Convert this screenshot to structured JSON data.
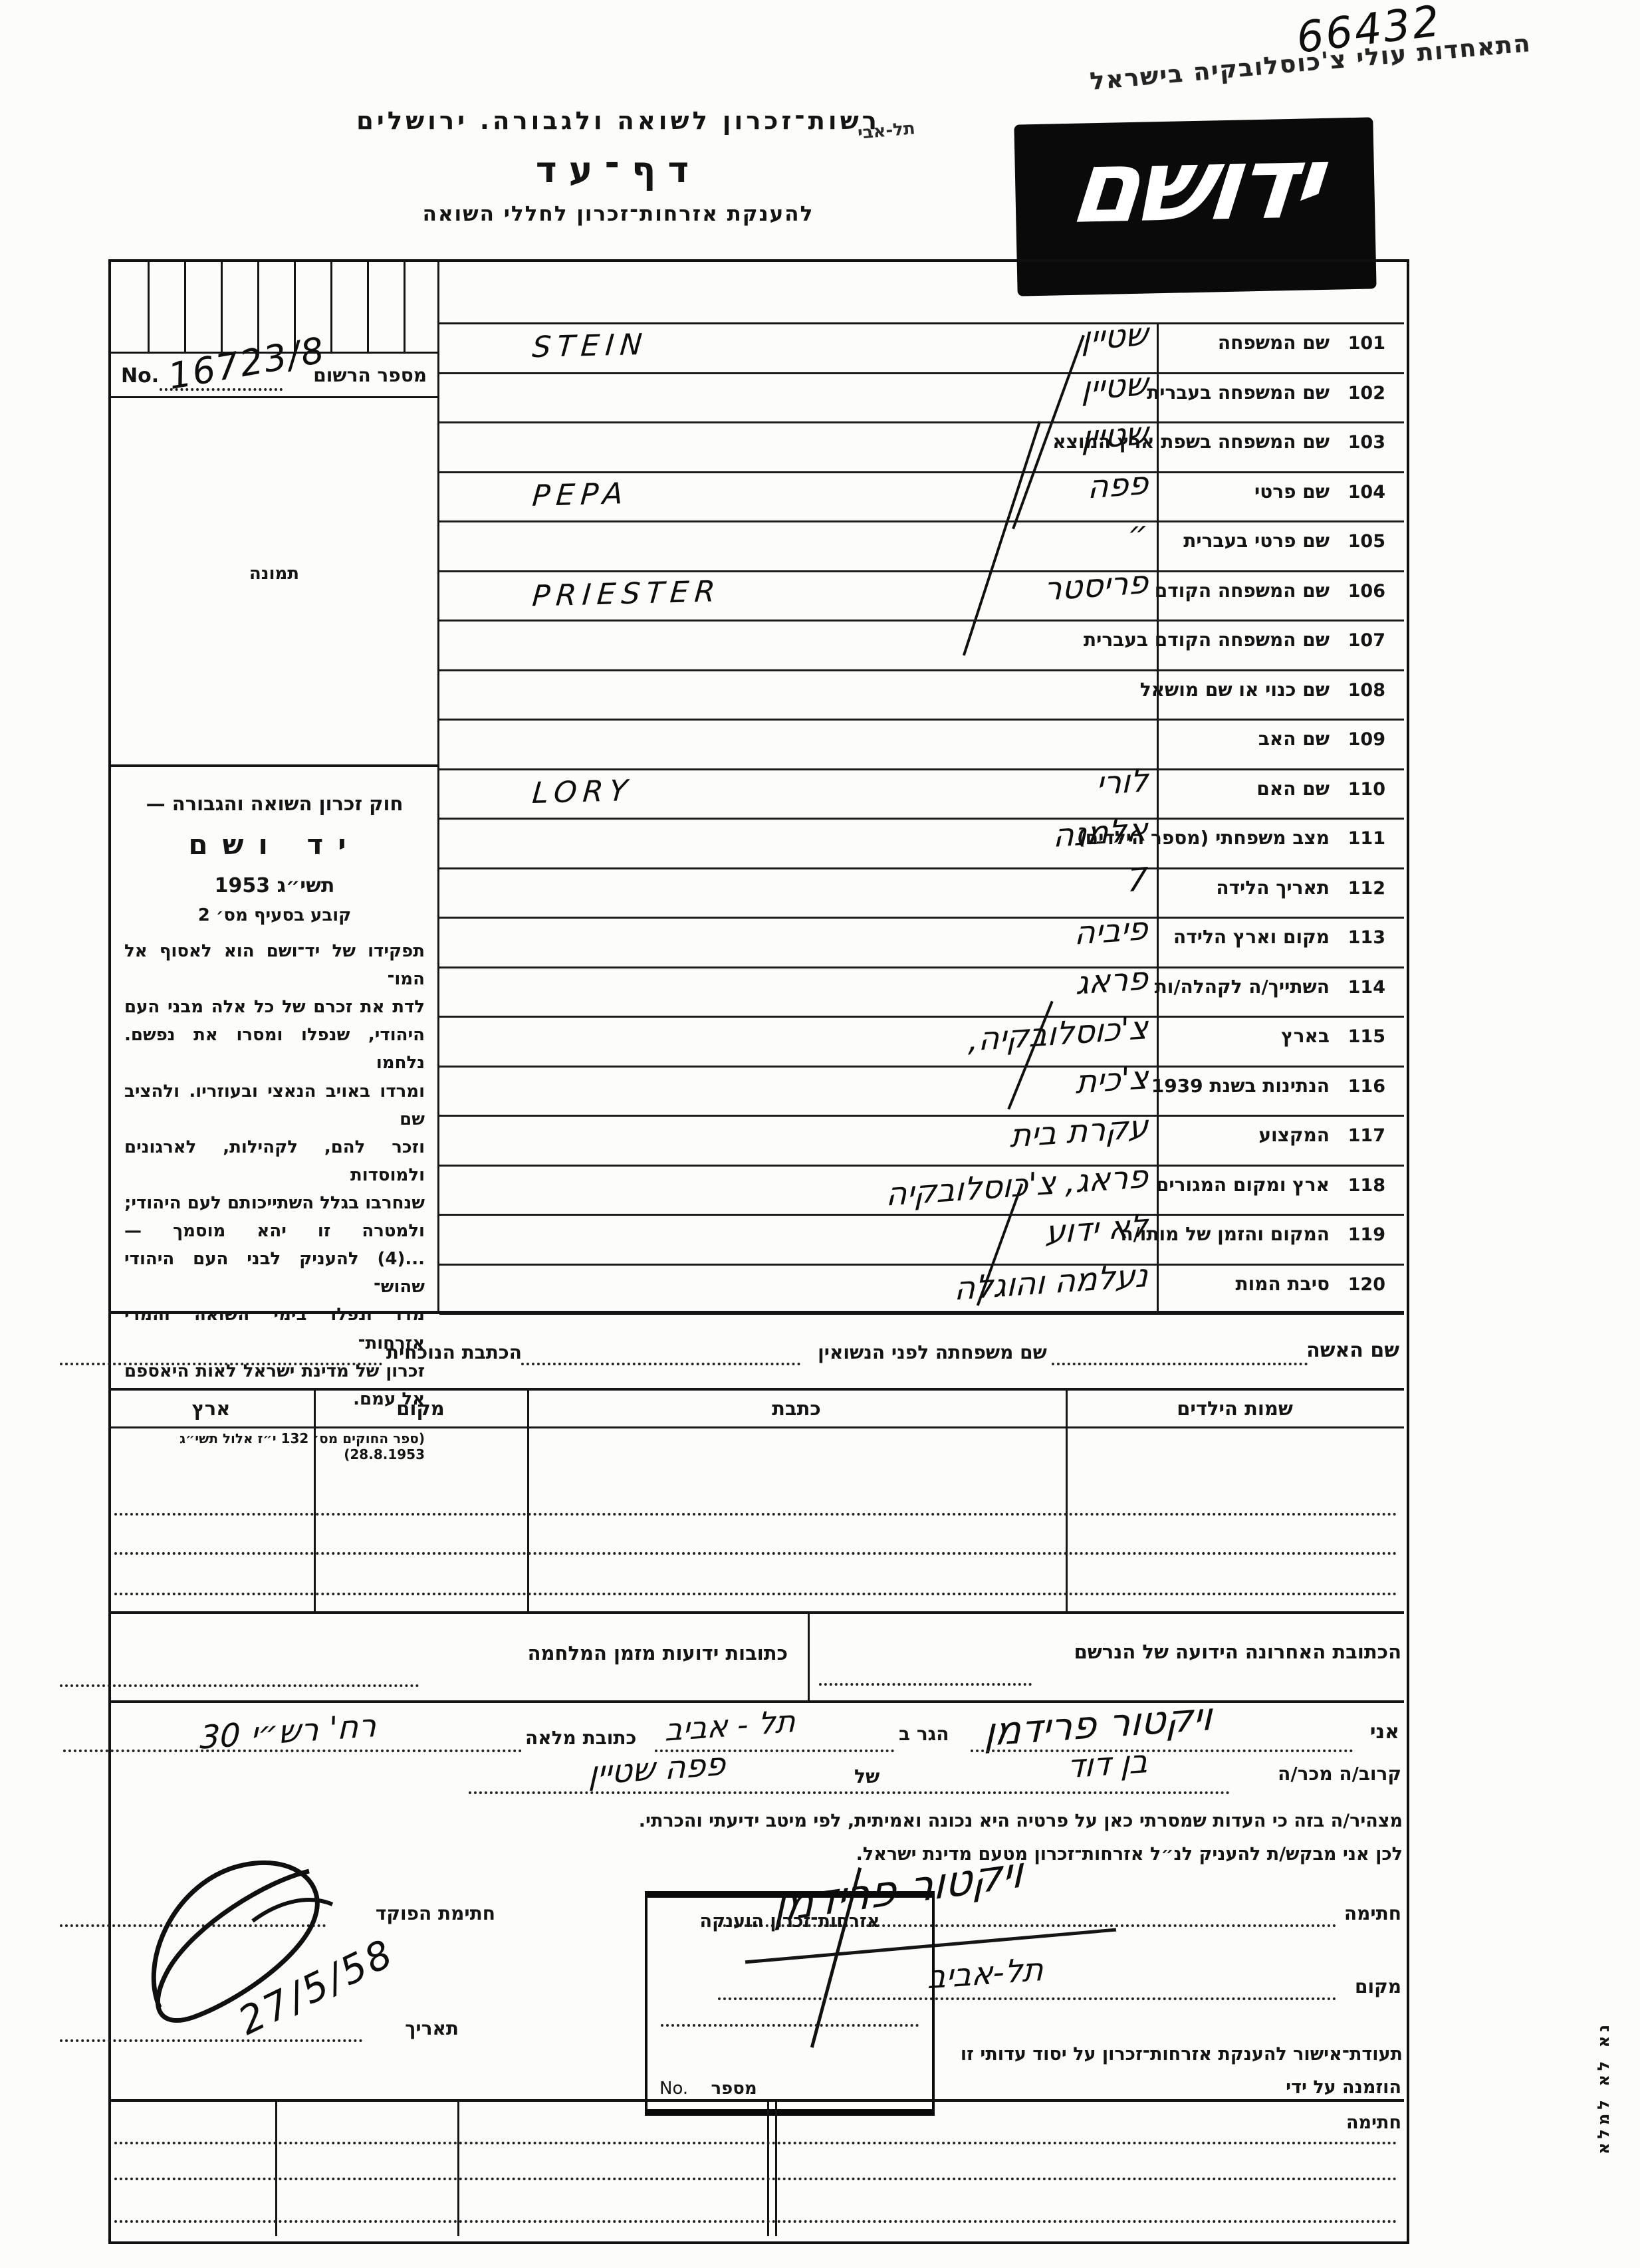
{
  "header": {
    "org_line": "רשות־זכרון לשואה ולגבורה. ירושלים",
    "form_title": "דף־עד",
    "subtitle": "להענקת אזרחות־זכרון לחללי השואה",
    "logo_text": "ידושם",
    "handwritten_number": "66432",
    "stamp_line1": "התאחדות עולי צ'כוסלובקיה בישראל",
    "stamp_line2": "תל-אבי"
  },
  "left_column": {
    "registry": {
      "label": "מספר הרשום",
      "no_prefix": "No.",
      "value": "16723/8",
      "photo_label": "תמונה"
    },
    "law": {
      "heading1": "חוק זכרון השואה והגבורה —",
      "heading2": "יד ושם",
      "heading3": "תשי״ג 1953",
      "heading4": "קובע בסעיף מס׳ 2",
      "body_lines": [
        "תפקידו של יד־ושם הוא לאסוף אל המו־",
        "לדת את זכרם של כל אלה מבני העם",
        "היהודי, שנפלו ומסרו את נפשם. נלחמו",
        "ומרדו באויב הנאצי ובעוזריו. ולהציב שם",
        "וזכר להם, לקהילות, לארגונים ולמוסדות",
        "שנחרבו בגלל השתייכותם לעם היהודי;",
        "ולמטרה זו יהא מוסמך —",
        "...(4) להעניק לבני העם היהודי שהוש־",
        "מדו ונפלו בימי השואה והמרי אזרחות־",
        "זכרון של מדינת ישראל לאות היאספם",
        "אל עמם."
      ],
      "citation": "(ספר החוקים מס׳ 132 י״ז אלול תשי״ג 28.8.1953)"
    }
  },
  "fields": [
    {
      "num": "101",
      "label": "שם המשפחה",
      "latin": "STEIN",
      "handwritten": "שטיין"
    },
    {
      "num": "102",
      "label": "שם המשפחה בעברית",
      "latin": "",
      "handwritten": "שטיין"
    },
    {
      "num": "103",
      "label": "שם המשפחה בשפת ארץ המוצא",
      "latin": "",
      "handwritten": "שטיין"
    },
    {
      "num": "104",
      "label": "שם פרטי",
      "latin": "PEPA",
      "handwritten": "פפה"
    },
    {
      "num": "105",
      "label": "שם פרטי בעברית",
      "latin": "",
      "handwritten": "״"
    },
    {
      "num": "106",
      "label": "שם המשפחה הקודם",
      "latin": "PRIESTER",
      "handwritten": "פריסטר"
    },
    {
      "num": "107",
      "label": "שם המשפחה הקודם בעברית",
      "latin": "",
      "handwritten": ""
    },
    {
      "num": "108",
      "label": "שם כנוי או שם מושאל",
      "latin": "",
      "handwritten": ""
    },
    {
      "num": "109",
      "label": "שם האב",
      "latin": "",
      "handwritten": ""
    },
    {
      "num": "110",
      "label": "שם האם",
      "latin": "LORY",
      "handwritten": "לורי"
    },
    {
      "num": "111",
      "label": "מצב משפחתי (מספר הילדים)",
      "latin": "",
      "handwritten": "אלמנה"
    },
    {
      "num": "112",
      "label": "תאריך הלידה",
      "latin": "",
      "handwritten": "7"
    },
    {
      "num": "113",
      "label": "מקום וארץ הלידה",
      "latin": "",
      "handwritten": "פיביה"
    },
    {
      "num": "114",
      "label": "השתייך/ה לקהלה/ות",
      "latin": "",
      "handwritten": "פראג"
    },
    {
      "num": "115",
      "label": "בארץ",
      "latin": "",
      "handwritten": "צ'כוסלובקיה,"
    },
    {
      "num": "116",
      "label": "הנתינות בשנת 1939",
      "latin": "",
      "handwritten": "צ'כית"
    },
    {
      "num": "117",
      "label": "המקצוע",
      "latin": "",
      "handwritten": "עקרת בית"
    },
    {
      "num": "118",
      "label": "ארץ ומקום המגורים",
      "latin": "",
      "handwritten": "פראג, צ'כוסלובקיה"
    },
    {
      "num": "119",
      "label": "המקום והזמן של מותו/ה",
      "latin": "",
      "handwritten": "לא ידוע"
    },
    {
      "num": "120",
      "label": "סיבת המות",
      "latin": "",
      "handwritten": "נעלמה והוגלה"
    }
  ],
  "wife": {
    "name_label": "שם האשה",
    "maiden_label": "שם משפחתה לפני הנשואין",
    "address_label": "הכתבת הנוכחית"
  },
  "children": {
    "headers": [
      "שמות הילדים",
      "כתבת",
      "מקום",
      "ארץ"
    ]
  },
  "addresses": {
    "last_known_label": "הכתובת האחרונה הידועה של הנרשם",
    "wartime_label": "כתובות ידועות מזמן המלחמה"
  },
  "declaration": {
    "i_label": "אני",
    "name_hw": "ויקטור פרידמן",
    "residing_label": "הגר ב",
    "city_hw": "תל - אביב",
    "full_address_label": "כתובת מלאה",
    "address_hw": "רח' רש״י 30",
    "relation_label": "קרוב/ה מכר/ה",
    "relation_hw": "בן דוד",
    "of_label": "של",
    "of_hw": "פפה שטיין",
    "statement": "מצהיר/ה בזה כי העדות שמסרתי כאן על פרטיה היא נכונה ואמיתית, לפי מיטב ידיעתי והכרתי.",
    "request": "לכן אני מבקש/ת להעניק לנ״ל אזרחות־זכרון מטעם מדינת ישראל."
  },
  "signature": {
    "sig_label": "חתימה",
    "sig_hw": "ויקטור פרידמן",
    "place_label": "מקום",
    "place_hw": "תל-אביב",
    "grant_box_title": "אזרחות־זכרון הוענקה",
    "grant_no_label": "מספר",
    "grant_no_prefix": "No.",
    "clerk_label": "חתימת הפוקד",
    "date_label": "תאריך",
    "date_hw": "27/5/58"
  },
  "cert": {
    "line1": "תעודת־אישור להענקת אזרחות־זכרון על יסוד עדותי זו",
    "line2": "הוזמנה על ידי",
    "line3": "חתימה"
  },
  "margin_note": "נא לא למלא"
}
